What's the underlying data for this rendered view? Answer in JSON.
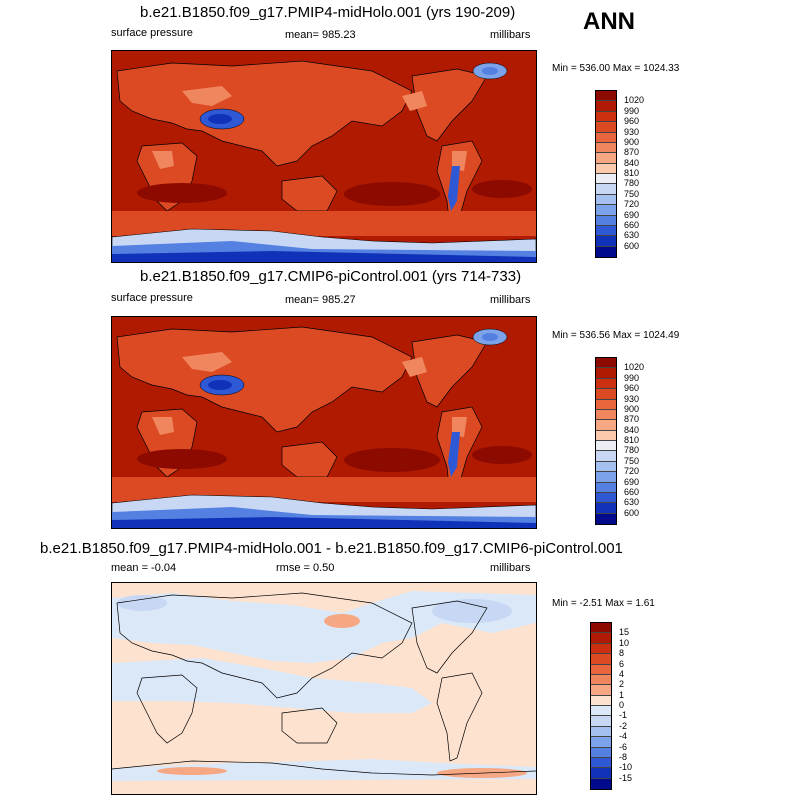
{
  "season": "ANN",
  "panels": [
    {
      "title": "b.e21.B1850.f09_g17.PMIP4-midHolo.001 (yrs 190-209)",
      "left_label": "surface pressure",
      "center_label": "mean= 985.23",
      "right_label": "millibars",
      "minmax": "Min = 536.00 Max = 1024.33"
    },
    {
      "title": "b.e21.B1850.f09_g17.CMIP6-piControl.001 (yrs 714-733)",
      "left_label": "surface pressure",
      "center_label": "mean= 985.27",
      "right_label": "millibars",
      "minmax": "Min = 536.56 Max = 1024.49"
    },
    {
      "title": "b.e21.B1850.f09_g17.PMIP4-midHolo.001 - b.e21.B1850.f09_g17.CMIP6-piControl.001",
      "left_label": "mean =  -0.04",
      "center_label": "rmse =   0.50",
      "right_label": "millibars",
      "minmax": "Min =  -2.51 Max =   1.61"
    }
  ],
  "colorbars": {
    "pressure": {
      "labels": [
        "1020",
        "990",
        "960",
        "930",
        "900",
        "870",
        "840",
        "810",
        "780",
        "750",
        "720",
        "690",
        "660",
        "630",
        "600"
      ],
      "colors": [
        "#8c0a00",
        "#b01a00",
        "#cc3010",
        "#dc4a24",
        "#e8653e",
        "#f0865e",
        "#f6a884",
        "#fbc9ab",
        "#eceef5",
        "#c8d8f4",
        "#a4c0f0",
        "#7ca2ea",
        "#5480e2",
        "#2e58d4",
        "#1032b8",
        "#000a8c"
      ]
    },
    "difference": {
      "labels": [
        "15",
        "10",
        "8",
        "6",
        "4",
        "2",
        "1",
        "0",
        "-1",
        "-2",
        "-4",
        "-6",
        "-8",
        "-10",
        "-15"
      ],
      "colors": [
        "#8c0a00",
        "#b01a00",
        "#cc3010",
        "#dc4a24",
        "#e8653e",
        "#f0865e",
        "#f6a884",
        "#fde2cf",
        "#dbe8f8",
        "#c8d8f4",
        "#a4c0f0",
        "#7ca2ea",
        "#5480e2",
        "#2e58d4",
        "#1032b8",
        "#000a8c"
      ]
    }
  }
}
